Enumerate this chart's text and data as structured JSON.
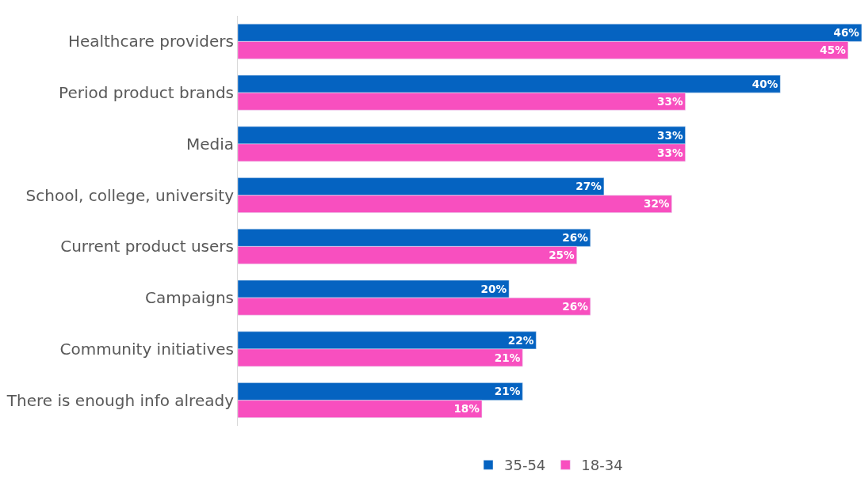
{
  "chart_data": {
    "type": "bar",
    "orientation": "horizontal",
    "categories": [
      "Healthcare providers",
      "Period product brands",
      "Media",
      "School, college, university",
      "Current product users",
      "Campaigns",
      "Community initiatives",
      "There is enough info already"
    ],
    "series": [
      {
        "name": "35-54",
        "color": "#0563c1",
        "values": [
          46,
          40,
          33,
          27,
          26,
          20,
          22,
          21
        ],
        "value_labels": [
          "46%",
          "40%",
          "33%",
          "27%",
          "26%",
          "20%",
          "22%",
          "21%"
        ]
      },
      {
        "name": "18-34",
        "color": "#f84fbf",
        "values": [
          45,
          33,
          33,
          32,
          25,
          26,
          21,
          18
        ],
        "value_labels": [
          "45%",
          "33%",
          "33%",
          "32%",
          "25%",
          "26%",
          "21%",
          "18%"
        ]
      }
    ],
    "legend": "bottom"
  }
}
